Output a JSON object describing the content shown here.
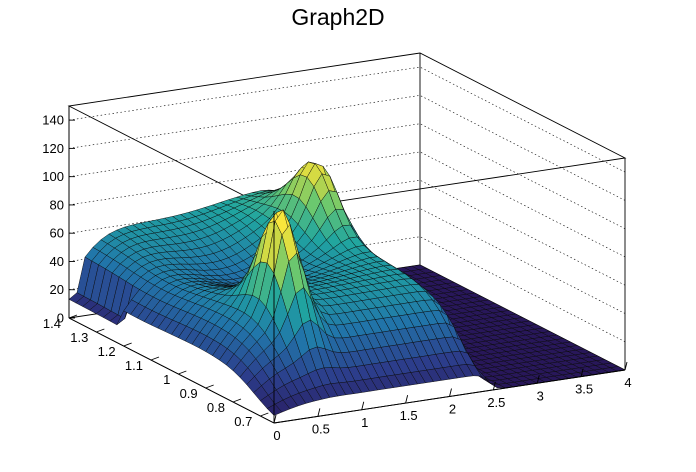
{
  "chart_data": {
    "type": "surface3d",
    "title": "Graph2D",
    "xlabel": "",
    "ylabel": "",
    "zlabel": "",
    "x_range": [
      0,
      4
    ],
    "y_range": [
      0.65,
      1.4
    ],
    "z_range": [
      0,
      150
    ],
    "x_ticks": [
      "0",
      "0.5",
      "1",
      "1.5",
      "2",
      "2.5",
      "3",
      "3.5",
      "4"
    ],
    "y_ticks": [
      "0.7",
      "0.8",
      "0.9",
      "1",
      "1.1",
      "1.2",
      "1.3",
      "1.4"
    ],
    "z_ticks": [
      "0",
      "20",
      "40",
      "60",
      "80",
      "100",
      "120",
      "140"
    ],
    "grid": true,
    "colormap": "viridis",
    "peaks": [
      {
        "x": 0.7,
        "y": 0.85,
        "z": 110
      },
      {
        "x": 2.2,
        "y": 1.2,
        "z": 105
      }
    ]
  }
}
